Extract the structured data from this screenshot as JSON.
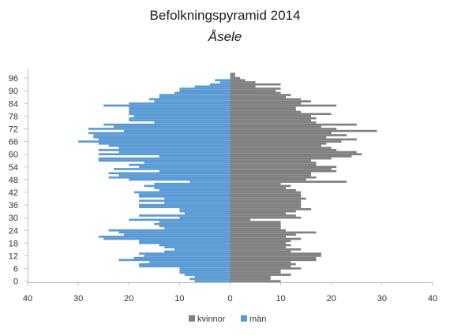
{
  "chart_data": {
    "type": "bar",
    "orientation": "horizontal",
    "title": "Befolkningspyramid  2014",
    "subtitle": "Åsele",
    "xlabel": "",
    "ylabel": "",
    "x_ticks": [
      "40",
      "30",
      "20",
      "10",
      "0",
      "10",
      "20",
      "30",
      "40"
    ],
    "xlim": [
      -40,
      40
    ],
    "y_ticks": [
      "0",
      "6",
      "12",
      "18",
      "24",
      "30",
      "36",
      "42",
      "48",
      "54",
      "60",
      "66",
      "72",
      "78",
      "84",
      "90",
      "96"
    ],
    "grid": false,
    "legend_position": "bottom",
    "colors": {
      "kvinnor": "#808080",
      "man": "#5b9bd5"
    },
    "categories": [
      0,
      1,
      2,
      3,
      4,
      5,
      6,
      7,
      8,
      9,
      10,
      11,
      12,
      13,
      14,
      15,
      16,
      17,
      18,
      19,
      20,
      21,
      22,
      23,
      24,
      25,
      26,
      27,
      28,
      29,
      30,
      31,
      32,
      33,
      34,
      35,
      36,
      37,
      38,
      39,
      40,
      41,
      42,
      43,
      44,
      45,
      46,
      47,
      48,
      49,
      50,
      51,
      52,
      53,
      54,
      55,
      56,
      57,
      58,
      59,
      60,
      61,
      62,
      63,
      64,
      65,
      66,
      67,
      68,
      69,
      70,
      71,
      72,
      73,
      74,
      75,
      76,
      77,
      78,
      79,
      80,
      81,
      82,
      83,
      84,
      85,
      86,
      87,
      88,
      89,
      90,
      91,
      92,
      93,
      94,
      95,
      96,
      97,
      98,
      99,
      100
    ],
    "series": [
      {
        "name": "kvinnor",
        "values": [
          10,
          8,
          8,
          12,
          10,
          10,
          14,
          12,
          13,
          12,
          17,
          17,
          18,
          18,
          12,
          14,
          11,
          12,
          11,
          12,
          14,
          11,
          13,
          17,
          11,
          10,
          10,
          10,
          10,
          4,
          14,
          13,
          11,
          13,
          16,
          14,
          14,
          14,
          14,
          15,
          14,
          14,
          14,
          13,
          11,
          12,
          10,
          23,
          15,
          17,
          16,
          16,
          21,
          20,
          21,
          17,
          17,
          16,
          20,
          24,
          26,
          25,
          21,
          20,
          18,
          19,
          22,
          25,
          19,
          23,
          20,
          29,
          21,
          18,
          25,
          17,
          16,
          17,
          16,
          20,
          14,
          13,
          13,
          21,
          14,
          16,
          14,
          11,
          12,
          10,
          9,
          10,
          5,
          10,
          5,
          3,
          2,
          1,
          1,
          0,
          0
        ]
      },
      {
        "name": "män",
        "values": [
          7,
          8,
          7,
          9,
          10,
          10,
          10,
          18,
          18,
          16,
          22,
          19,
          17,
          18,
          13,
          11,
          13,
          14,
          18,
          18,
          25,
          26,
          21,
          22,
          24,
          13,
          14,
          15,
          14,
          20,
          10,
          18,
          9,
          10,
          10,
          18,
          18,
          13,
          18,
          13,
          18,
          18,
          19,
          14,
          15,
          17,
          15,
          8,
          20,
          24,
          22,
          24,
          14,
          23,
          18,
          20,
          17,
          26,
          26,
          14,
          26,
          22,
          26,
          22,
          24,
          26,
          30,
          26,
          27,
          27,
          28,
          21,
          28,
          23,
          25,
          15,
          20,
          20,
          19,
          20,
          20,
          20,
          20,
          25,
          20,
          15,
          16,
          14,
          14,
          11,
          10,
          10,
          7,
          4,
          2,
          3,
          0,
          0,
          0,
          0,
          0
        ]
      }
    ]
  },
  "legend": {
    "kvinnor_label": "kvinnor",
    "man_label": "män"
  }
}
